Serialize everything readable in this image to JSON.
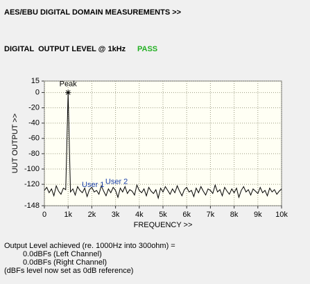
{
  "header": {
    "title": "AES/EBU DIGITAL DOMAIN MEASUREMENTS >>",
    "test": "DIGITAL  OUTPUT LEVEL @ 1kHz",
    "status": "PASS"
  },
  "chart_data": {
    "type": "line",
    "ylabel": "UUT OUTPUT >>",
    "xlabel": "FREQUENCY >>",
    "xlim": [
      0,
      10000
    ],
    "ylim": [
      -148,
      15
    ],
    "xticks": [
      0,
      {
        "value": 1000,
        "label": "1k"
      },
      {
        "value": 2000,
        "label": "2k"
      },
      {
        "value": 3000,
        "label": "3k"
      },
      {
        "value": 4000,
        "label": "4k"
      },
      {
        "value": 5000,
        "label": "5k"
      },
      {
        "value": 6000,
        "label": "6k"
      },
      {
        "value": 7000,
        "label": "7k"
      },
      {
        "value": 8000,
        "label": "8k"
      },
      {
        "value": 9000,
        "label": "9k"
      },
      {
        "value": 10000,
        "label": "10k"
      }
    ],
    "yticks": [
      15,
      0,
      -20,
      -40,
      -60,
      -80,
      -100,
      -120,
      -148
    ],
    "grid": true,
    "x": [
      0,
      100,
      200,
      300,
      400,
      500,
      600,
      700,
      800,
      900,
      1000,
      1100,
      1200,
      1300,
      1400,
      1500,
      1600,
      1700,
      1800,
      1900,
      2000,
      2100,
      2200,
      2300,
      2400,
      2500,
      2600,
      2700,
      2800,
      2900,
      3000,
      3100,
      3200,
      3300,
      3400,
      3500,
      3600,
      3700,
      3800,
      3900,
      4000,
      4100,
      4200,
      4300,
      4400,
      4500,
      4600,
      4700,
      4800,
      4900,
      5000,
      5100,
      5200,
      5300,
      5400,
      5500,
      5600,
      5700,
      5800,
      5900,
      6000,
      6100,
      6200,
      6300,
      6400,
      6500,
      6600,
      6700,
      6800,
      6900,
      7000,
      7100,
      7200,
      7300,
      7400,
      7500,
      7600,
      7700,
      7800,
      7900,
      8000,
      8100,
      8200,
      8300,
      8400,
      8500,
      8600,
      8700,
      8800,
      8900,
      9000,
      9100,
      9200,
      9300,
      9400,
      9500,
      9600,
      9700,
      9800,
      9900,
      10000
    ],
    "series": [
      {
        "color": "#000000",
        "values": [
          -128,
          -124,
          -131,
          -126,
          -135,
          -122,
          -129,
          -133,
          -125,
          -127,
          0,
          -130,
          -126,
          -134,
          -123,
          -128,
          -131,
          -125,
          -136,
          -127,
          -124,
          -130,
          -128,
          -133,
          -122,
          -129,
          -135,
          -126,
          -131,
          -124,
          -128,
          -137,
          -125,
          -130,
          -123,
          -132,
          -127,
          -129,
          -134,
          -121,
          -128,
          -131,
          -126,
          -135,
          -124,
          -129,
          -132,
          -127,
          -138,
          -125,
          -130,
          -123,
          -128,
          -133,
          -126,
          -131,
          -122,
          -129,
          -135,
          -127,
          -124,
          -130,
          -128,
          -136,
          -125,
          -131,
          -123,
          -129,
          -134,
          -126,
          -128,
          -132,
          -121,
          -130,
          -127,
          -135,
          -124,
          -129,
          -133,
          -126,
          -131,
          -125,
          -137,
          -128,
          -123,
          -130,
          -127,
          -134,
          -126,
          -129,
          -132,
          -124,
          -131,
          -128,
          -135,
          -125,
          -130,
          -127,
          -133,
          -129,
          -126
        ]
      }
    ],
    "annotations": [
      {
        "text": "Peak",
        "x": 1000,
        "y": 0,
        "color": "#000000"
      },
      {
        "text": "User 1",
        "x": 1580,
        "y": -121,
        "color": "#1a3fa8"
      },
      {
        "text": "User 2",
        "x": 2570,
        "y": -117,
        "color": "#1a3fa8"
      }
    ]
  },
  "footer": {
    "lines": [
      "Output Level achieved (re. 1000Hz into 300ohm) =",
      "0.0dBFs (Left Channel)",
      "0.0dBFs (Right Channel)",
      "(dBFs level now set as 0dB reference)"
    ]
  }
}
